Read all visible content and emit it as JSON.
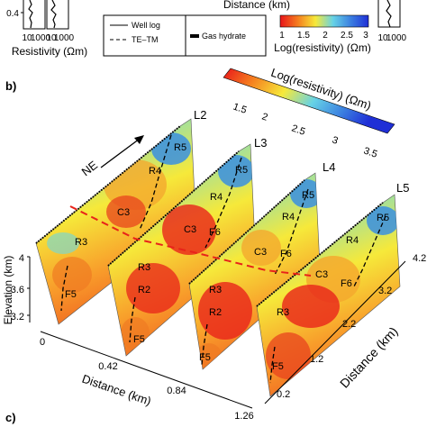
{
  "top_strip": {
    "x_axis_title": "Distance (km)",
    "resistivity_ticks": [
      "10",
      "1000"
    ],
    "resistivity_title": "Resistivity (Ωm)",
    "y_ticks": [
      "0.4"
    ],
    "legend": {
      "well_log": "Well log",
      "te_tm": "TE–TM",
      "gas_hydrate": "Gas hydrate"
    },
    "colorbar": {
      "ticks": [
        "1",
        "1.5",
        "2",
        "2.5",
        "3"
      ],
      "title": "Log(resistivity) (Ωm)"
    }
  },
  "panel_b": {
    "label": "b)",
    "colorbar": {
      "title": "Log(resistivity) (Ωm)",
      "ticks": [
        "1.5",
        "2",
        "2.5",
        "3",
        "3.5"
      ]
    },
    "direction_label": "NE",
    "lines": [
      {
        "name": "L2",
        "features": {
          "R5": "R5",
          "R4": "R4",
          "C3": "C3",
          "R3": "R3",
          "F5": "F5"
        }
      },
      {
        "name": "L3",
        "features": {
          "R5": "R5",
          "R4": "R4",
          "F6": "F6",
          "C3": "C3",
          "R3": "R3",
          "R2": "R2",
          "F5": "F5"
        }
      },
      {
        "name": "L4",
        "features": {
          "R5": "R5",
          "R4": "R4",
          "F6": "F6",
          "C3": "C3",
          "R3": "R3",
          "R2": "R2",
          "F5": "F5"
        }
      },
      {
        "name": "L5",
        "features": {
          "R5": "R5",
          "R4": "R4",
          "F6": "F6",
          "C3": "C3",
          "R3": "R3",
          "F5": "F5"
        }
      }
    ],
    "elevation_axis": {
      "title": "Elevation (km)",
      "ticks": [
        "4",
        "3.6",
        "3.2"
      ]
    },
    "distance_axis_x": {
      "title": "Distance (km)",
      "ticks": [
        "0",
        "0.42",
        "0.84",
        "1.26"
      ]
    },
    "distance_axis_y": {
      "title": "Distance (km)",
      "ticks": [
        "4.2",
        "3.2",
        "2.2",
        "1.2",
        "0.2"
      ]
    }
  },
  "panel_c": {
    "label": "c)"
  }
}
